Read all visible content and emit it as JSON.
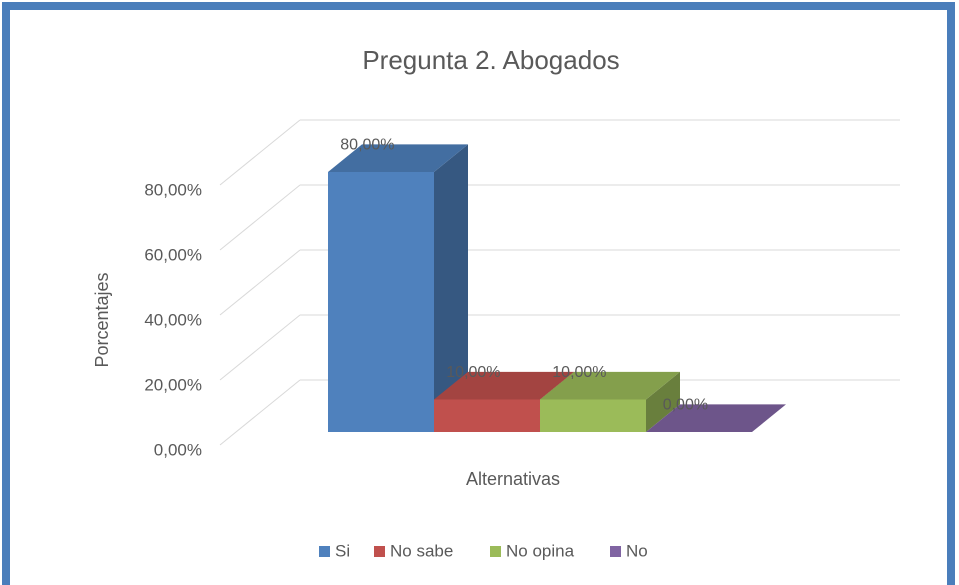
{
  "chart_data": {
    "type": "bar3d",
    "title": "Pregunta 2. Abogados",
    "categories": [
      "Si",
      "No sabe",
      "No opina",
      "No"
    ],
    "values": [
      80,
      10,
      10,
      0
    ],
    "value_labels": [
      "80,00%",
      "10,00%",
      "10,00%",
      "0,00%"
    ],
    "colors": [
      "#4f81bd",
      "#c0504d",
      "#9bbb59",
      "#8064a2"
    ],
    "ylim": [
      0,
      80
    ],
    "yticks": [
      {
        "value": 0,
        "label": "0,00%"
      },
      {
        "value": 20,
        "label": "20,00%"
      },
      {
        "value": 40,
        "label": "40,00%"
      },
      {
        "value": 60,
        "label": "60,00%"
      },
      {
        "value": 80,
        "label": "80,00%"
      }
    ],
    "xlabel": "Alternativas",
    "ylabel": "Porcentajes",
    "grid": true,
    "legend": "bottom"
  }
}
